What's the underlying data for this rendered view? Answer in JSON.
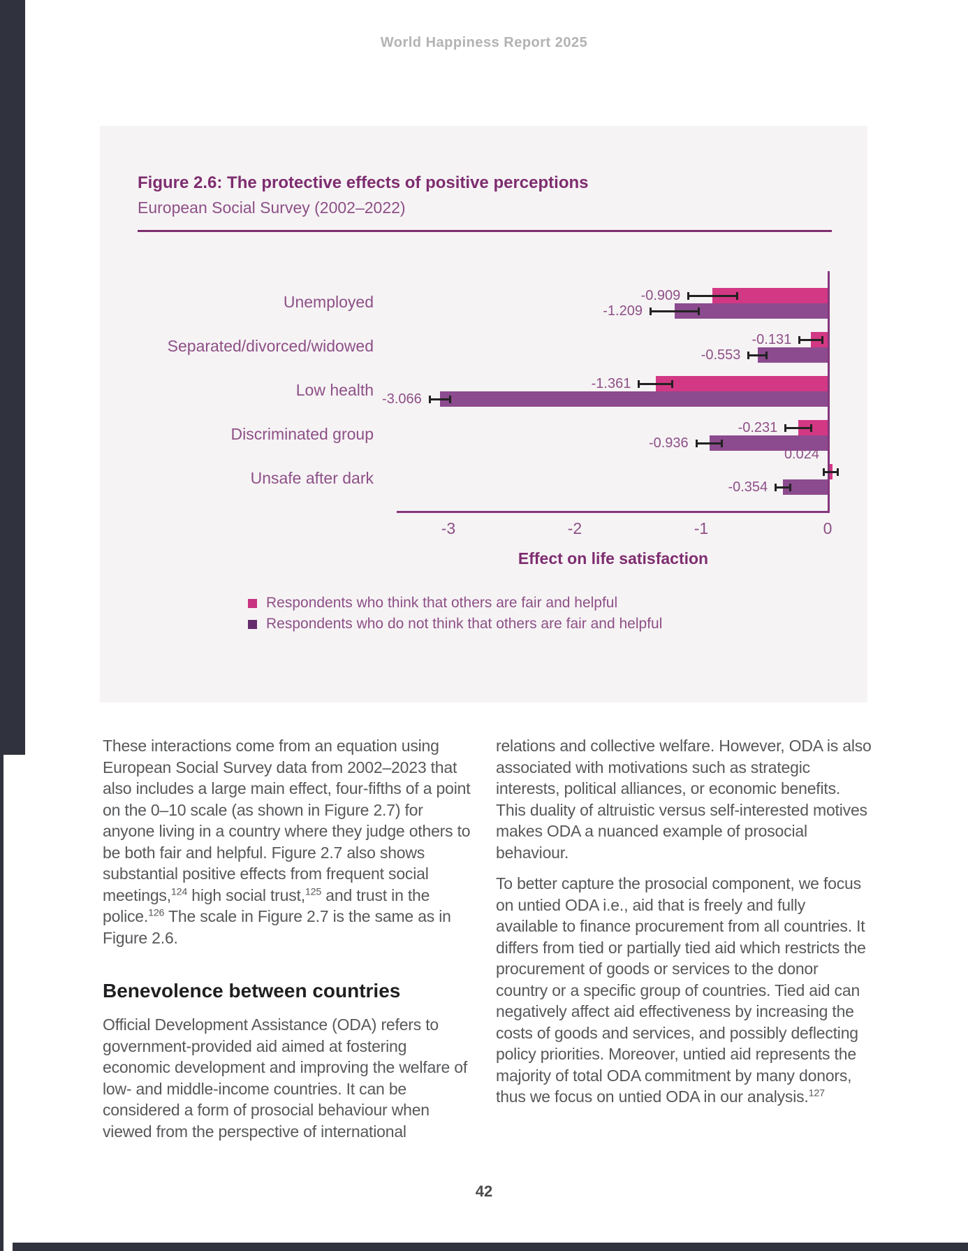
{
  "page": {
    "header": "World Happiness Report 2025",
    "page_number": "42"
  },
  "chart_data": {
    "type": "bar",
    "orientation": "horizontal",
    "title": "Figure 2.6: The protective effects of positive perceptions",
    "subtitle": "European Social Survey (2002–2022)",
    "categories": [
      "Unemployed",
      "Separated/divorced/widowed",
      "Low health",
      "Discriminated group",
      "Unsafe after dark"
    ],
    "series": [
      {
        "name": "Respondents who think that others are fair and helpful",
        "color": "#d23884",
        "legend_color": "#c9337f",
        "values": [
          -0.909,
          -0.131,
          -1.361,
          -0.231,
          0.024
        ],
        "value_labels": [
          "-0.909",
          "-0.131",
          "-1.361",
          "-0.231",
          "0.024"
        ],
        "errors": [
          0.2,
          0.1,
          0.14,
          0.11,
          0.065
        ]
      },
      {
        "name": "Respondents who do not think that others are fair and helpful",
        "color": "#8c4b8e",
        "legend_color": "#662d6c",
        "values": [
          -1.209,
          -0.553,
          -3.066,
          -0.936,
          -0.354
        ],
        "value_labels": [
          "-1.209",
          "-0.553",
          "-3.066",
          "-0.936",
          "-0.354"
        ],
        "errors": [
          0.2,
          0.08,
          0.09,
          0.11,
          0.065
        ]
      }
    ],
    "xlabel": "Effect on life satisfaction",
    "xticks": [
      "-3",
      "-2",
      "-1",
      "0"
    ],
    "xtick_values": [
      -3,
      -2,
      -1,
      0
    ],
    "xlim": [
      -3.42,
      0.31
    ],
    "grid": false,
    "legend_position": "below"
  },
  "body": {
    "left": {
      "para1": [
        {
          "t": "These interactions come from an equation using European Social Survey data from 2002–2023 that also includes a large main effect, four-fifths of a point on the 0–10 scale (as shown in Figure 2.7) for anyone living in a country where they judge others to be both fair and helpful. Figure 2.7 also shows substantial positive effects from frequent social meetings,"
        },
        {
          "t": "124",
          "sup": true
        },
        {
          "t": " high social trust,"
        },
        {
          "t": "125",
          "sup": true
        },
        {
          "t": " and trust in the police."
        },
        {
          "t": "126",
          "sup": true
        },
        {
          "t": " The scale in Figure 2.7 is the same as in Figure 2.6."
        }
      ],
      "heading": "Benevolence between countries",
      "para2": [
        {
          "t": "Official Development Assistance (ODA) refers to government-provided aid aimed at fostering economic development and improving the welfare of low- and middle-income countries. It can be considered a form of prosocial behaviour when viewed from the perspective of international"
        }
      ]
    },
    "right": {
      "para1": [
        {
          "t": "relations and collective welfare. However, ODA is also associated with motivations such as strategic interests, political alliances, or economic benefits. This duality of altruistic versus self-interested motives makes ODA a nuanced example of prosocial behaviour."
        }
      ],
      "para2": [
        {
          "t": "To better capture the prosocial component, we focus on untied ODA i.e., aid that is freely and fully available to finance procurement from all countries. It differs from tied or partially tied aid which restricts the procurement of goods or services to the donor country or a specific group of countries. Tied aid can negatively affect aid effectiveness by increasing the costs of goods and services, and possibly deflecting policy priorities. Moreover, untied aid represents the majority of total ODA commitment by many donors, thus we focus on untied ODA in our analysis."
        },
        {
          "t": "127",
          "sup": true
        }
      ]
    }
  }
}
